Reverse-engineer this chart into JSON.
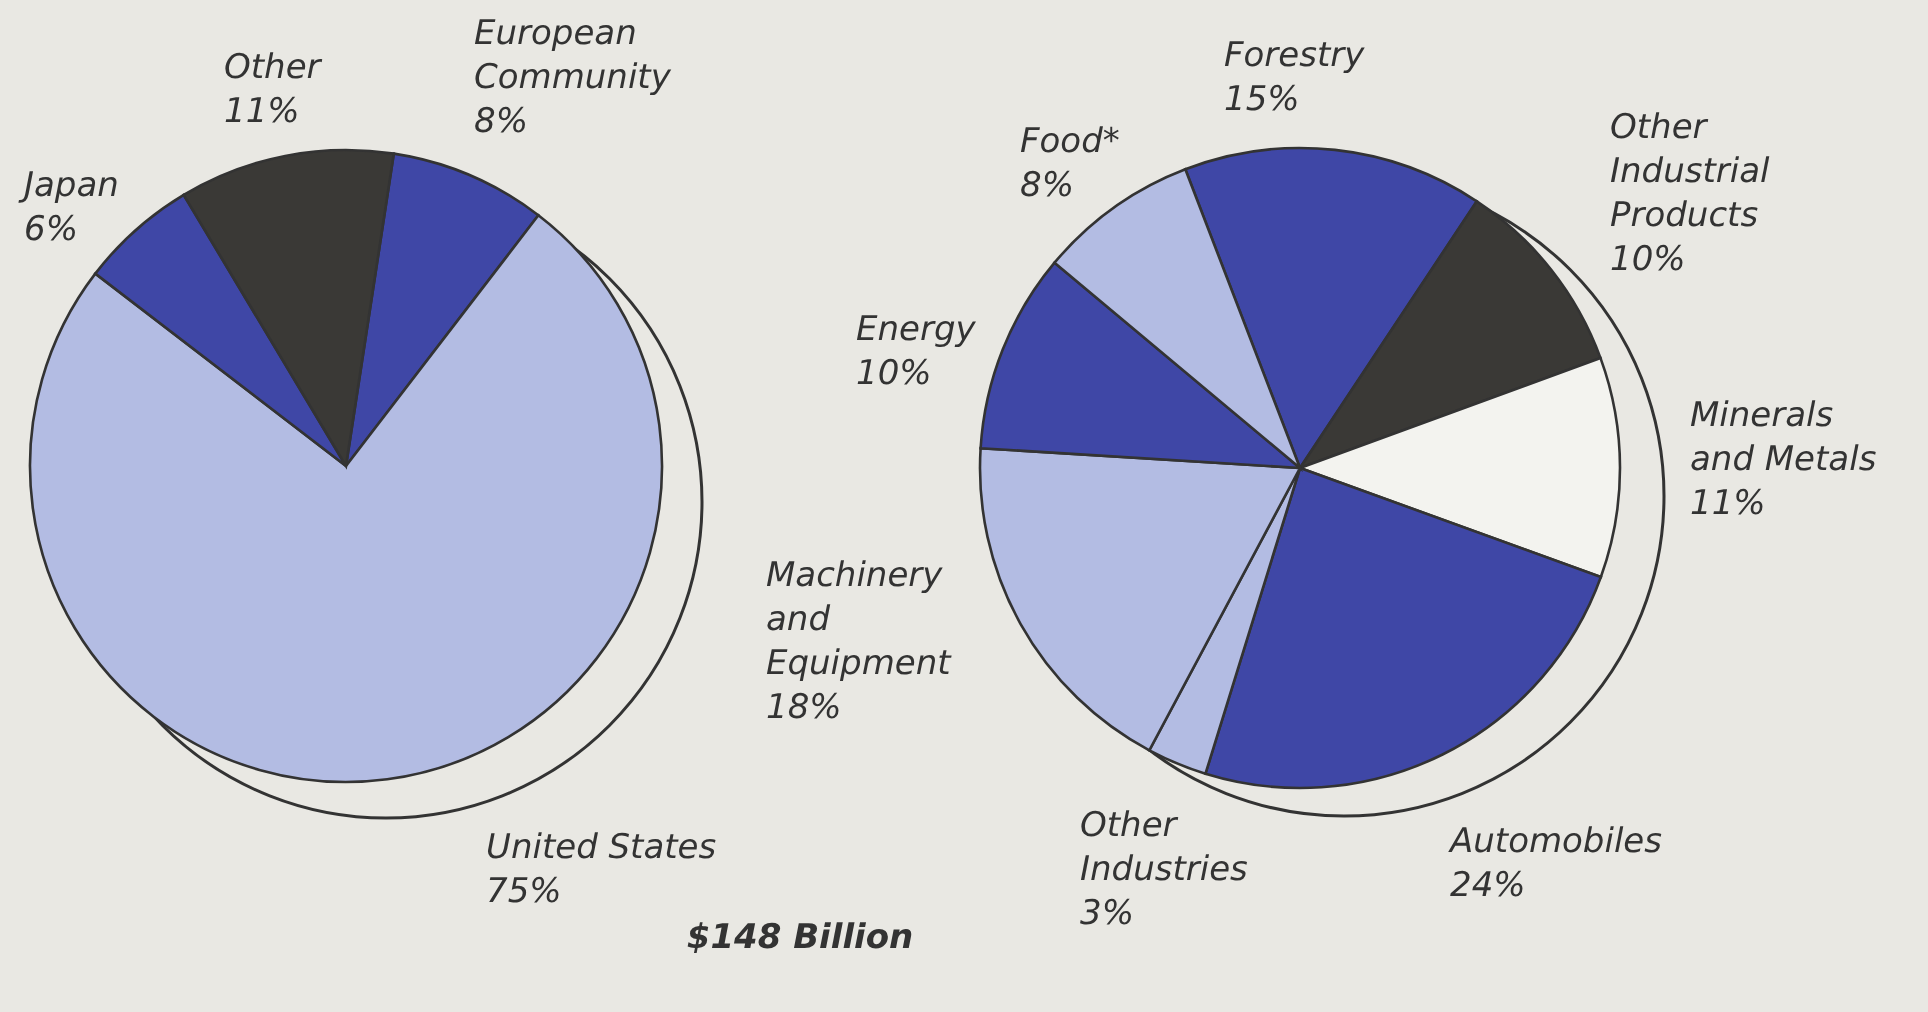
{
  "chart_data": [
    {
      "type": "pie",
      "categories": [
        "European\nCommunity",
        "United States",
        "Japan",
        "Other"
      ],
      "values": [
        8,
        75,
        6,
        11
      ],
      "value_labels": [
        "8%",
        "75%",
        "6%",
        "11%"
      ],
      "colors": [
        "#3f47a6",
        "#b3bce3",
        "#3f47a6",
        "#3a3936"
      ]
    },
    {
      "type": "pie",
      "categories": [
        "Forestry",
        "Other\nIndustrial\nProducts",
        "Minerals\nand Metals",
        "Automobiles",
        "Other\nIndustries",
        "Machinery\nand\nEquipment",
        "Energy",
        "Food*"
      ],
      "values": [
        15,
        10,
        11,
        24,
        3,
        18,
        10,
        8
      ],
      "value_labels": [
        "15%",
        "10%",
        "11%",
        "24%",
        "3%",
        "18%",
        "10%",
        "8%"
      ],
      "colors": [
        "#3f47a6",
        "#3a3936",
        "#f3f3ef",
        "#3f47a6",
        "#b3bce3",
        "#b3bce3",
        "#3f47a6",
        "#b3bce3"
      ],
      "annotations": [
        "$148 Billion"
      ]
    }
  ]
}
